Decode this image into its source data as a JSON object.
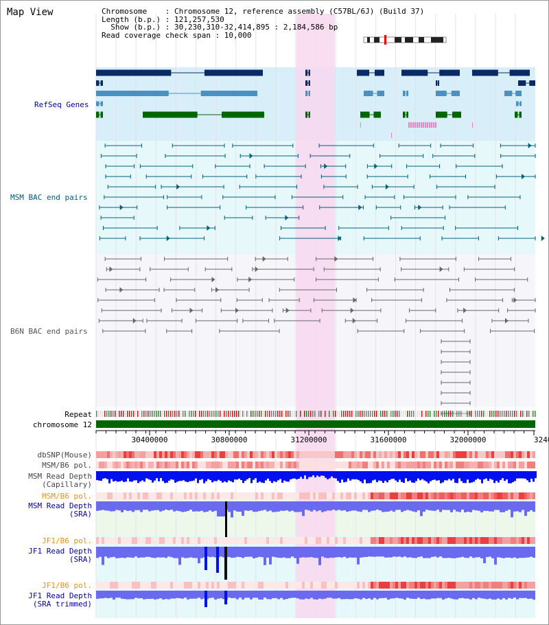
{
  "view": {
    "title": "Map View"
  },
  "info": {
    "line1": "Chromosome    : Chromosome 12, reference assembly (C57BL/6J) (Build 37)",
    "line2": "Length (b.p.) : 121,257,530",
    "line3": "  Show (b.p.) : 30,230,310-32,414,895 : 2,184,586 bp",
    "line4": "Read coverage check span : 10,000"
  },
  "tracks": {
    "refseq": "RefSeq Genes",
    "msm_bac": "MSM BAC end pairs",
    "b6n_bac": "B6N BAC end pairs",
    "repeat": "Repeat",
    "chrom": "chromosome 12",
    "dbsnp": "dbSNP(Mouse)",
    "msm_b6_pol_1": "MSM/B6 pol.",
    "msm_depth_cap_1": "MSM Read Depth",
    "msm_depth_cap_2": "(Capillary)",
    "msm_b6_pol_2": "MSM/B6 pol.",
    "msm_depth_sra_1": "MSM Read Depth",
    "msm_depth_sra_2": "(SRA)",
    "jf1_pol_1": "JF1/B6 pol.",
    "jf1_depth_1": "JF1 Read Depth",
    "jf1_depth_2": "(SRA)",
    "jf1_pol_2": "JF1/B6 pol.",
    "jf1_trim_1": "JF1 Read Depth",
    "jf1_trim_2": "(SRA trimmed)"
  },
  "axis": {
    "ticks": [
      "30400000",
      "30800000",
      "31200000",
      "31600000",
      "32000000",
      "3240"
    ]
  },
  "colors": {
    "refseq_dark": "#0a2a66",
    "refseq_mid": "#4a90c0",
    "refseq_green": "#006600",
    "refseq_bg": "#d8eef8",
    "msm_bac": "#00607a",
    "msm_bac_bg": "#e6f8fa",
    "b6n_bac": "#666666",
    "highlight": "#f8d8f0",
    "chrom": "#006600",
    "depth_blue": "#0010ee",
    "depth_purple": "#6a6af0",
    "pol_label": "#e8900a",
    "label_blue": "#0000aa",
    "label_teal": "#005a80"
  }
}
